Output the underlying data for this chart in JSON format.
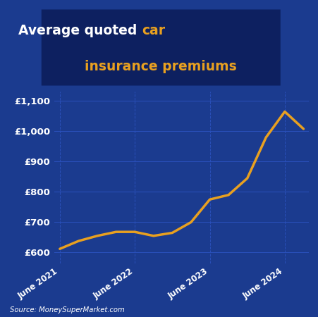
{
  "title_white": "Average quoted ",
  "title_yellow1": "car",
  "title_yellow2": "insurance premiums",
  "background_color": "#1b3b8f",
  "title_box_color": "#0d2060",
  "line_color": "#e8a020",
  "grid_color_h": "#2a50bb",
  "grid_color_v": "#2a50bb",
  "text_color": "#ffffff",
  "source_text": "Source: MoneySuperMarket.com",
  "x_labels": [
    "June 2021",
    "June 2022",
    "June 2023",
    "June 2024"
  ],
  "x_tick_positions": [
    0,
    4,
    8,
    12
  ],
  "x_data": [
    0,
    1,
    2,
    3,
    4,
    5,
    6,
    7,
    8,
    9,
    10,
    11,
    12,
    13
  ],
  "y_data": [
    612,
    638,
    655,
    668,
    668,
    655,
    665,
    700,
    775,
    790,
    845,
    980,
    1065,
    1008
  ],
  "ylim_min": 565,
  "ylim_max": 1130,
  "yticks": [
    600,
    700,
    800,
    900,
    1000,
    1100
  ],
  "ytick_labels": [
    "£600",
    "£700",
    "£800",
    "£900",
    "£1,000",
    "£1,100"
  ]
}
